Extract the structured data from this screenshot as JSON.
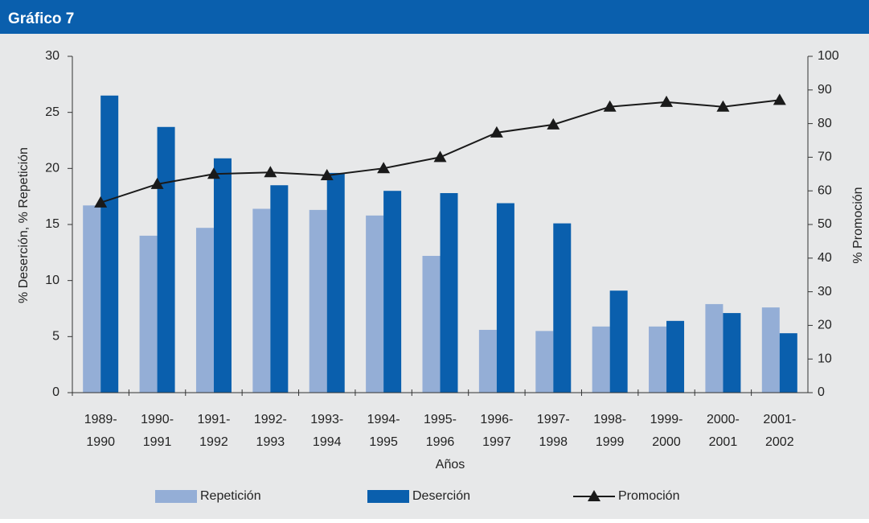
{
  "header": {
    "title": "Gráfico 7"
  },
  "chart_data": {
    "type": "bar-line",
    "xlabel": "Años",
    "ylabel": "% Deserción, % Repetición",
    "y2label": "% Promoción",
    "categories": [
      [
        "1989-",
        "1990"
      ],
      [
        "1990-",
        "1991"
      ],
      [
        "1991-",
        "1992"
      ],
      [
        "1992-",
        "1993"
      ],
      [
        "1993-",
        "1994"
      ],
      [
        "1994-",
        "1995"
      ],
      [
        "1995-",
        "1996"
      ],
      [
        "1996-",
        "1997"
      ],
      [
        "1997-",
        "1998"
      ],
      [
        "1998-",
        "1999"
      ],
      [
        "1999-",
        "2000"
      ],
      [
        "2000-",
        "2001"
      ],
      [
        "2001-",
        "2002"
      ]
    ],
    "series": [
      {
        "name": "Repetición",
        "type": "bar",
        "color": "#94aed6",
        "values": [
          16.7,
          14.0,
          14.7,
          16.4,
          16.3,
          15.8,
          12.2,
          5.6,
          5.5,
          5.9,
          5.9,
          7.9,
          7.6
        ]
      },
      {
        "name": "Deserción",
        "type": "bar",
        "color": "#0a5fad",
        "values": [
          26.5,
          23.7,
          20.9,
          18.5,
          19.6,
          18.0,
          17.8,
          16.9,
          15.1,
          9.1,
          6.4,
          7.1,
          5.3
        ]
      },
      {
        "name": "Promoción",
        "type": "line",
        "axis": "y2",
        "color": "#1a1a1a",
        "values": [
          56.5,
          62,
          65,
          65.5,
          64.6,
          66.7,
          70,
          77.3,
          79.7,
          85,
          86.4,
          85,
          87
        ]
      }
    ],
    "ylim": [
      0,
      30
    ],
    "yticks": [
      0,
      5,
      10,
      15,
      20,
      25,
      30
    ],
    "y2lim": [
      0,
      100
    ],
    "y2ticks": [
      0,
      10,
      20,
      30,
      40,
      50,
      60,
      70,
      80,
      90,
      100
    ],
    "legend": "bottom"
  }
}
